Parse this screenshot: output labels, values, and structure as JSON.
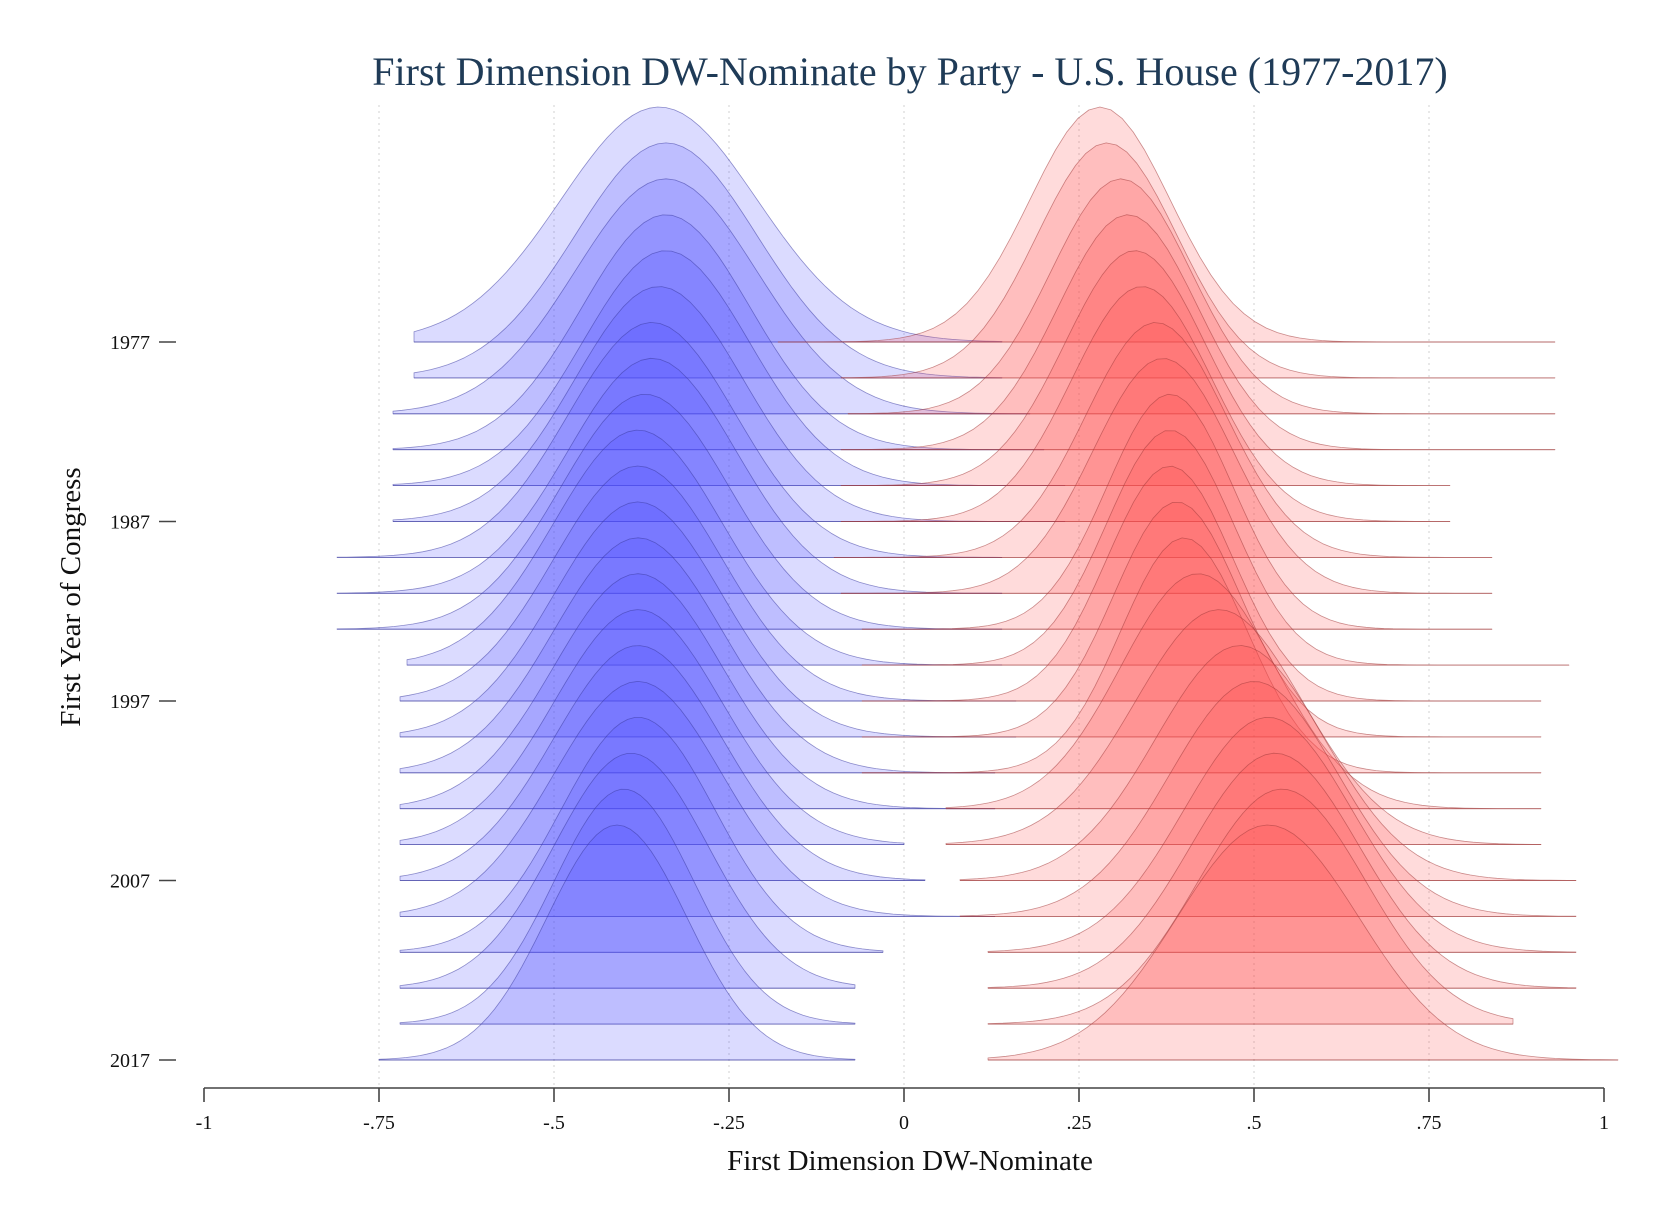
{
  "chart_data": {
    "type": "area",
    "subtype": "ridgeline-density",
    "title": "First Dimension DW-Nominate by Party - U.S. House (1977-2017)",
    "xlabel": "First Dimension DW-Nominate",
    "ylabel": "First Year of Congress",
    "xlim": [
      -1,
      1
    ],
    "x_ticks": [
      -1,
      -0.75,
      -0.5,
      -0.25,
      0,
      0.25,
      0.5,
      0.75,
      1
    ],
    "x_tick_labels": [
      "-1",
      "-.75",
      "-.5",
      "-.25",
      "0",
      ".25",
      ".5",
      ".75",
      "1"
    ],
    "y_tick_labels": [
      {
        "year": 1977,
        "label": "1977"
      },
      {
        "year": 1987,
        "label": "1987"
      },
      {
        "year": 1997,
        "label": "1997"
      },
      {
        "year": 2007,
        "label": "2007"
      },
      {
        "year": 2017,
        "label": "2017"
      }
    ],
    "grid": "vertical dotted",
    "legend": "none",
    "fill_opacity": 0.2,
    "colors": {
      "democrat_fill": "#4d4dff",
      "democrat_stroke": "#3a3aa0",
      "republican_fill": "#ff4d4d",
      "republican_stroke": "#a03a3a",
      "title": "#1f3b57",
      "axis": "#444444",
      "grid": "#d4d4d4"
    },
    "congresses": [
      {
        "year": 1977,
        "dem": {
          "mean": -0.35,
          "sd": 0.14,
          "min": -0.7,
          "max": 0.14
        },
        "rep": {
          "mean": 0.28,
          "sd": 0.1,
          "min": -0.18,
          "max": 0.93
        }
      },
      {
        "year": 1979,
        "dem": {
          "mean": -0.34,
          "sd": 0.13,
          "min": -0.7,
          "max": 0.14
        },
        "rep": {
          "mean": 0.29,
          "sd": 0.1,
          "min": -0.09,
          "max": 0.93
        }
      },
      {
        "year": 1981,
        "dem": {
          "mean": -0.34,
          "sd": 0.13,
          "min": -0.73,
          "max": 0.18
        },
        "rep": {
          "mean": 0.31,
          "sd": 0.1,
          "min": -0.08,
          "max": 0.93
        }
      },
      {
        "year": 1983,
        "dem": {
          "mean": -0.34,
          "sd": 0.12,
          "min": -0.73,
          "max": 0.2
        },
        "rep": {
          "mean": 0.32,
          "sd": 0.1,
          "min": -0.09,
          "max": 0.93
        }
      },
      {
        "year": 1985,
        "dem": {
          "mean": -0.34,
          "sd": 0.12,
          "min": -0.73,
          "max": 0.23
        },
        "rep": {
          "mean": 0.33,
          "sd": 0.1,
          "min": -0.09,
          "max": 0.78
        }
      },
      {
        "year": 1987,
        "dem": {
          "mean": -0.35,
          "sd": 0.12,
          "min": -0.73,
          "max": 0.23
        },
        "rep": {
          "mean": 0.34,
          "sd": 0.1,
          "min": -0.09,
          "max": 0.78
        }
      },
      {
        "year": 1989,
        "dem": {
          "mean": -0.36,
          "sd": 0.12,
          "min": -0.81,
          "max": 0.14
        },
        "rep": {
          "mean": 0.36,
          "sd": 0.1,
          "min": -0.1,
          "max": 0.84
        }
      },
      {
        "year": 1991,
        "dem": {
          "mean": -0.36,
          "sd": 0.12,
          "min": -0.81,
          "max": 0.14
        },
        "rep": {
          "mean": 0.37,
          "sd": 0.1,
          "min": -0.09,
          "max": 0.84
        }
      },
      {
        "year": 1993,
        "dem": {
          "mean": -0.37,
          "sd": 0.12,
          "min": -0.81,
          "max": 0.14
        },
        "rep": {
          "mean": 0.38,
          "sd": 0.09,
          "min": -0.06,
          "max": 0.84
        }
      },
      {
        "year": 1995,
        "dem": {
          "mean": -0.38,
          "sd": 0.12,
          "min": -0.71,
          "max": 0.14
        },
        "rep": {
          "mean": 0.38,
          "sd": 0.09,
          "min": -0.06,
          "max": 0.95
        }
      },
      {
        "year": 1997,
        "dem": {
          "mean": -0.38,
          "sd": 0.12,
          "min": -0.72,
          "max": 0.16
        },
        "rep": {
          "mean": 0.38,
          "sd": 0.09,
          "min": -0.06,
          "max": 0.91
        }
      },
      {
        "year": 1999,
        "dem": {
          "mean": -0.38,
          "sd": 0.12,
          "min": -0.72,
          "max": 0.16
        },
        "rep": {
          "mean": 0.39,
          "sd": 0.09,
          "min": -0.06,
          "max": 0.91
        }
      },
      {
        "year": 2001,
        "dem": {
          "mean": -0.38,
          "sd": 0.12,
          "min": -0.72,
          "max": 0.13
        },
        "rep": {
          "mean": 0.4,
          "sd": 0.09,
          "min": -0.06,
          "max": 0.91
        }
      },
      {
        "year": 2003,
        "dem": {
          "mean": -0.38,
          "sd": 0.12,
          "min": -0.72,
          "max": 0.13
        },
        "rep": {
          "mean": 0.42,
          "sd": 0.11,
          "min": 0.06,
          "max": 0.91
        }
      },
      {
        "year": 2005,
        "dem": {
          "mean": -0.38,
          "sd": 0.12,
          "min": -0.72,
          "max": 0.0
        },
        "rep": {
          "mean": 0.45,
          "sd": 0.12,
          "min": 0.06,
          "max": 0.91
        }
      },
      {
        "year": 2007,
        "dem": {
          "mean": -0.38,
          "sd": 0.12,
          "min": -0.72,
          "max": 0.03
        },
        "rep": {
          "mean": 0.48,
          "sd": 0.12,
          "min": 0.08,
          "max": 0.96
        }
      },
      {
        "year": 2009,
        "dem": {
          "mean": -0.38,
          "sd": 0.12,
          "min": -0.72,
          "max": 0.13
        },
        "rep": {
          "mean": 0.5,
          "sd": 0.12,
          "min": 0.08,
          "max": 0.96
        }
      },
      {
        "year": 2011,
        "dem": {
          "mean": -0.38,
          "sd": 0.11,
          "min": -0.72,
          "max": -0.03
        },
        "rep": {
          "mean": 0.52,
          "sd": 0.12,
          "min": 0.12,
          "max": 0.96
        }
      },
      {
        "year": 2013,
        "dem": {
          "mean": -0.39,
          "sd": 0.11,
          "min": -0.72,
          "max": -0.07
        },
        "rep": {
          "mean": 0.53,
          "sd": 0.12,
          "min": 0.12,
          "max": 0.96
        }
      },
      {
        "year": 2015,
        "dem": {
          "mean": -0.4,
          "sd": 0.1,
          "min": -0.72,
          "max": -0.07
        },
        "rep": {
          "mean": 0.54,
          "sd": 0.12,
          "min": 0.12,
          "max": 0.87
        }
      },
      {
        "year": 2017,
        "dem": {
          "mean": -0.41,
          "sd": 0.1,
          "min": -0.75,
          "max": -0.07
        },
        "rep": {
          "mean": 0.52,
          "sd": 0.13,
          "min": 0.12,
          "max": 1.02
        }
      }
    ]
  }
}
